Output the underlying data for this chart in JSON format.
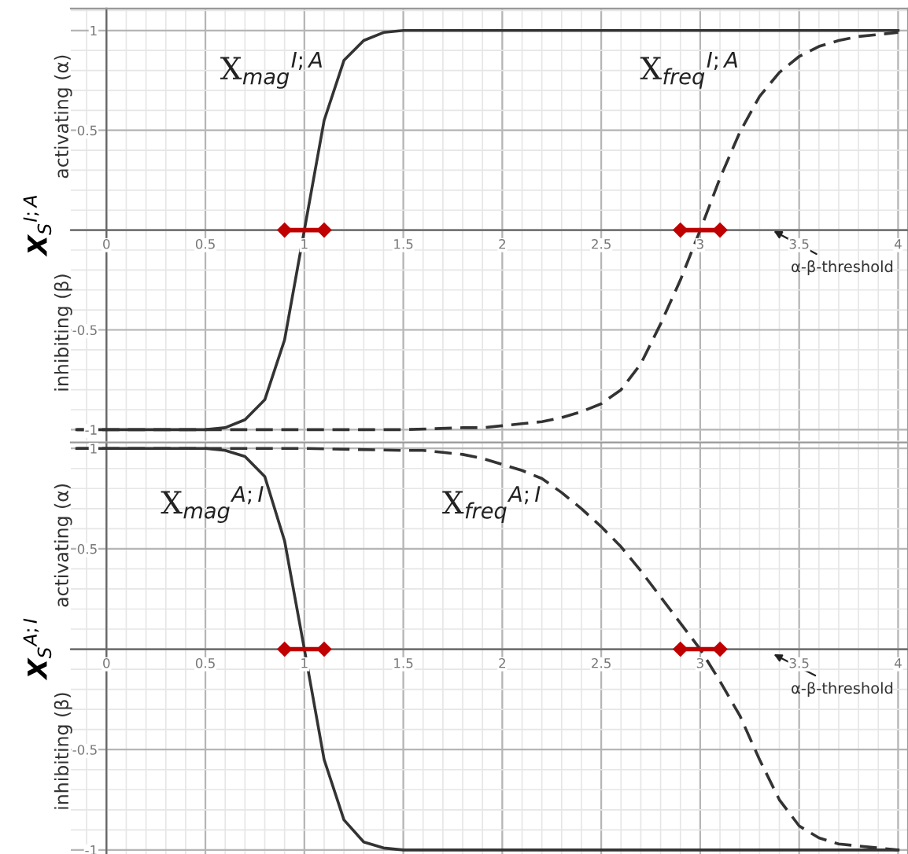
{
  "chart_data": [
    {
      "type": "line",
      "ylabel": "X$_{S}$$^{I;A}$",
      "xlim": [
        -0.18,
        4.05
      ],
      "ylim": [
        -1.055,
        1.11
      ],
      "xticks": [
        0,
        0.5,
        1,
        1.5,
        2,
        2.5,
        3,
        3.5,
        4
      ],
      "yticks": [
        -1,
        -0.5,
        0.5,
        1
      ],
      "grid": true,
      "series": [
        {
          "name": "X$_{mag}$$^{I;A}$",
          "color": "#333333",
          "line_style": "solid",
          "x": [
            -0.15,
            0,
            0.1,
            0.2,
            0.3,
            0.4,
            0.5,
            0.6,
            0.7,
            0.8,
            0.9,
            1.0,
            1.1,
            1.2,
            1.3,
            1.4,
            1.5,
            2.0,
            2.5,
            3.0,
            3.5,
            4.0
          ],
          "values": [
            -1,
            -1,
            -1,
            -1,
            -1,
            -1,
            -1,
            -0.99,
            -0.95,
            -0.85,
            -0.55,
            0,
            0.55,
            0.85,
            0.95,
            0.99,
            1,
            1,
            1,
            1,
            1,
            1
          ]
        },
        {
          "name": "X$_{freq}$$^{I;A}$",
          "color": "#333333",
          "line_style": "dashed",
          "x": [
            -0.15,
            0.5,
            1.0,
            1.5,
            1.8,
            1.9,
            2.0,
            2.1,
            2.2,
            2.3,
            2.4,
            2.5,
            2.6,
            2.7,
            2.8,
            2.9,
            3.0,
            3.1,
            3.2,
            3.3,
            3.4,
            3.5,
            3.6,
            3.7,
            3.8,
            3.9,
            4.0
          ],
          "values": [
            -1,
            -1,
            -1,
            -1,
            -0.99,
            -0.99,
            -0.98,
            -0.97,
            -0.96,
            -0.94,
            -0.91,
            -0.87,
            -0.8,
            -0.67,
            -0.47,
            -0.25,
            0,
            0.26,
            0.49,
            0.67,
            0.79,
            0.87,
            0.92,
            0.95,
            0.97,
            0.98,
            0.99
          ]
        },
        {
          "color": "#c00000",
          "marker": "diamond",
          "x": [
            0.9,
            1.1
          ],
          "values": [
            0,
            0
          ]
        },
        {
          "color": "#c00000",
          "marker": "diamond",
          "x": [
            2.9,
            3.1
          ],
          "values": [
            0,
            0
          ]
        }
      ],
      "annotations": [
        "activating (α)",
        "inhibiting (β)",
        "α-β-threshold"
      ]
    },
    {
      "type": "line",
      "ylabel": "X$_{S}$$^{A;I}$",
      "xlim": [
        -0.18,
        4.05
      ],
      "ylim": [
        -1.02,
        1.03
      ],
      "xticks": [
        0,
        0.5,
        1,
        1.5,
        2,
        2.5,
        3,
        3.5,
        4
      ],
      "yticks": [
        -1,
        -0.5,
        0.5,
        1
      ],
      "grid": true,
      "series": [
        {
          "name": "X$_{mag}$$^{A;I}$",
          "color": "#333333",
          "line_style": "solid",
          "x": [
            -0.15,
            0,
            0.1,
            0.2,
            0.3,
            0.4,
            0.5,
            0.6,
            0.7,
            0.8,
            0.9,
            1.0,
            1.1,
            1.2,
            1.3,
            1.4,
            1.5,
            2.0,
            2.5,
            3.0,
            3.5,
            4.0
          ],
          "values": [
            1,
            1,
            1,
            1,
            1,
            1,
            1,
            0.99,
            0.96,
            0.86,
            0.54,
            0,
            -0.55,
            -0.85,
            -0.96,
            -0.99,
            -1,
            -1,
            -1,
            -1,
            -1,
            -1
          ]
        },
        {
          "name": "X$_{freq}$$^{A;I}$",
          "color": "#333333",
          "line_style": "dashed",
          "x": [
            -0.15,
            0.5,
            1.0,
            1.5,
            1.6,
            1.7,
            1.8,
            1.9,
            2.0,
            2.1,
            2.2,
            2.3,
            2.4,
            2.5,
            2.6,
            2.7,
            2.8,
            2.9,
            3.0,
            3.1,
            3.2,
            3.3,
            3.4,
            3.5,
            3.6,
            3.7,
            3.8,
            3.9,
            4.0
          ],
          "values": [
            1,
            1,
            1,
            0.99,
            0.99,
            0.98,
            0.97,
            0.95,
            0.92,
            0.89,
            0.85,
            0.78,
            0.7,
            0.61,
            0.51,
            0.39,
            0.26,
            0.13,
            0,
            -0.16,
            -0.33,
            -0.55,
            -0.75,
            -0.88,
            -0.94,
            -0.97,
            -0.98,
            -0.99,
            -1
          ]
        },
        {
          "color": "#c00000",
          "marker": "diamond",
          "x": [
            0.9,
            1.1
          ],
          "values": [
            0,
            0
          ]
        },
        {
          "color": "#c00000",
          "marker": "diamond",
          "x": [
            2.9,
            3.1
          ],
          "values": [
            0,
            0
          ]
        }
      ],
      "annotations": [
        "activating (α)",
        "inhibiting (β)",
        "α-β-threshold"
      ]
    }
  ]
}
